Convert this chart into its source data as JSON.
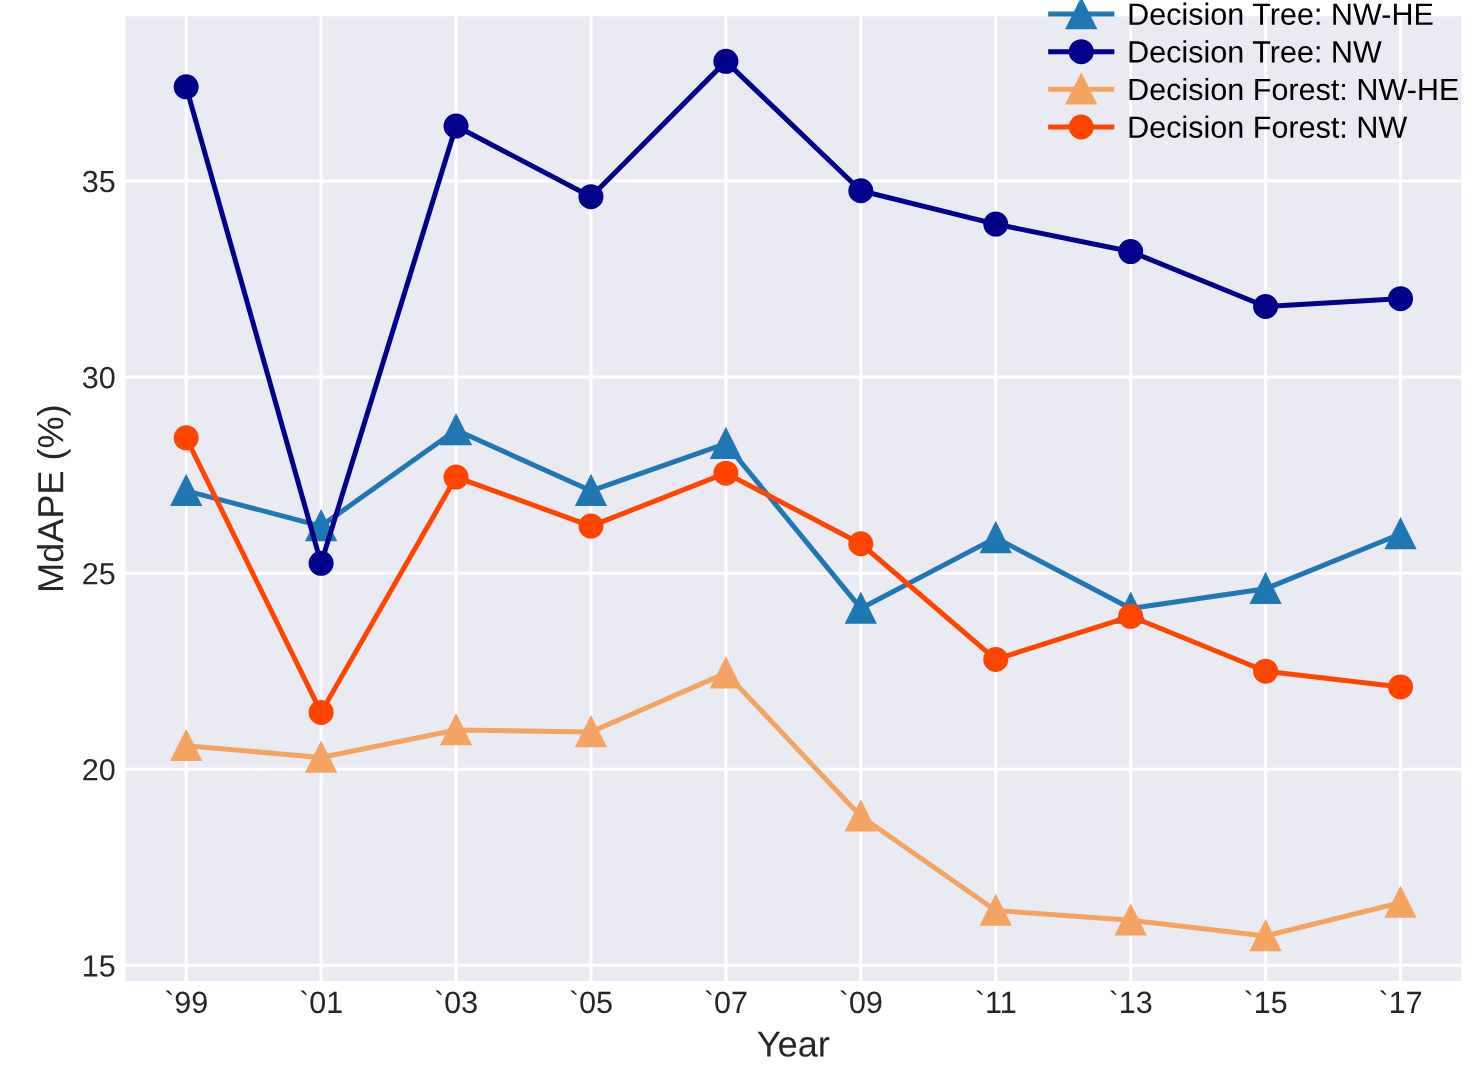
{
  "chart_data": {
    "type": "line",
    "xlabel": "Year",
    "ylabel": "MdAPE (%)",
    "categories": [
      "`99",
      "`01",
      "`03",
      "`05",
      "`07",
      "`09",
      "`11",
      "`13",
      "`15",
      "`17"
    ],
    "series": [
      {
        "name": "Decision Tree: NW-HE",
        "color": "#1f77b4",
        "marker": "triangle",
        "values": [
          27.1,
          26.2,
          28.65,
          27.1,
          28.3,
          24.1,
          25.9,
          24.1,
          24.6,
          26.0
        ]
      },
      {
        "name": "Decision Tree: NW",
        "color": "#00008b",
        "marker": "circle",
        "values": [
          37.4,
          25.25,
          36.4,
          34.6,
          38.05,
          34.75,
          33.9,
          33.2,
          31.8,
          32.0
        ]
      },
      {
        "name": "Decision Forest: NW-HE",
        "color": "#f4a460",
        "marker": "triangle",
        "values": [
          20.6,
          20.3,
          21.0,
          20.95,
          22.45,
          18.8,
          16.4,
          16.15,
          15.75,
          16.6
        ]
      },
      {
        "name": "Decision Forest: NW",
        "color": "#ff4500",
        "marker": "circle",
        "values": [
          28.45,
          21.45,
          27.45,
          26.2,
          27.55,
          25.75,
          22.8,
          23.9,
          22.5,
          22.1
        ]
      }
    ],
    "ylim": [
      14.6,
      39.2
    ],
    "yticks": [
      15,
      20,
      25,
      30,
      35
    ],
    "grid": true,
    "legend": "top right"
  }
}
